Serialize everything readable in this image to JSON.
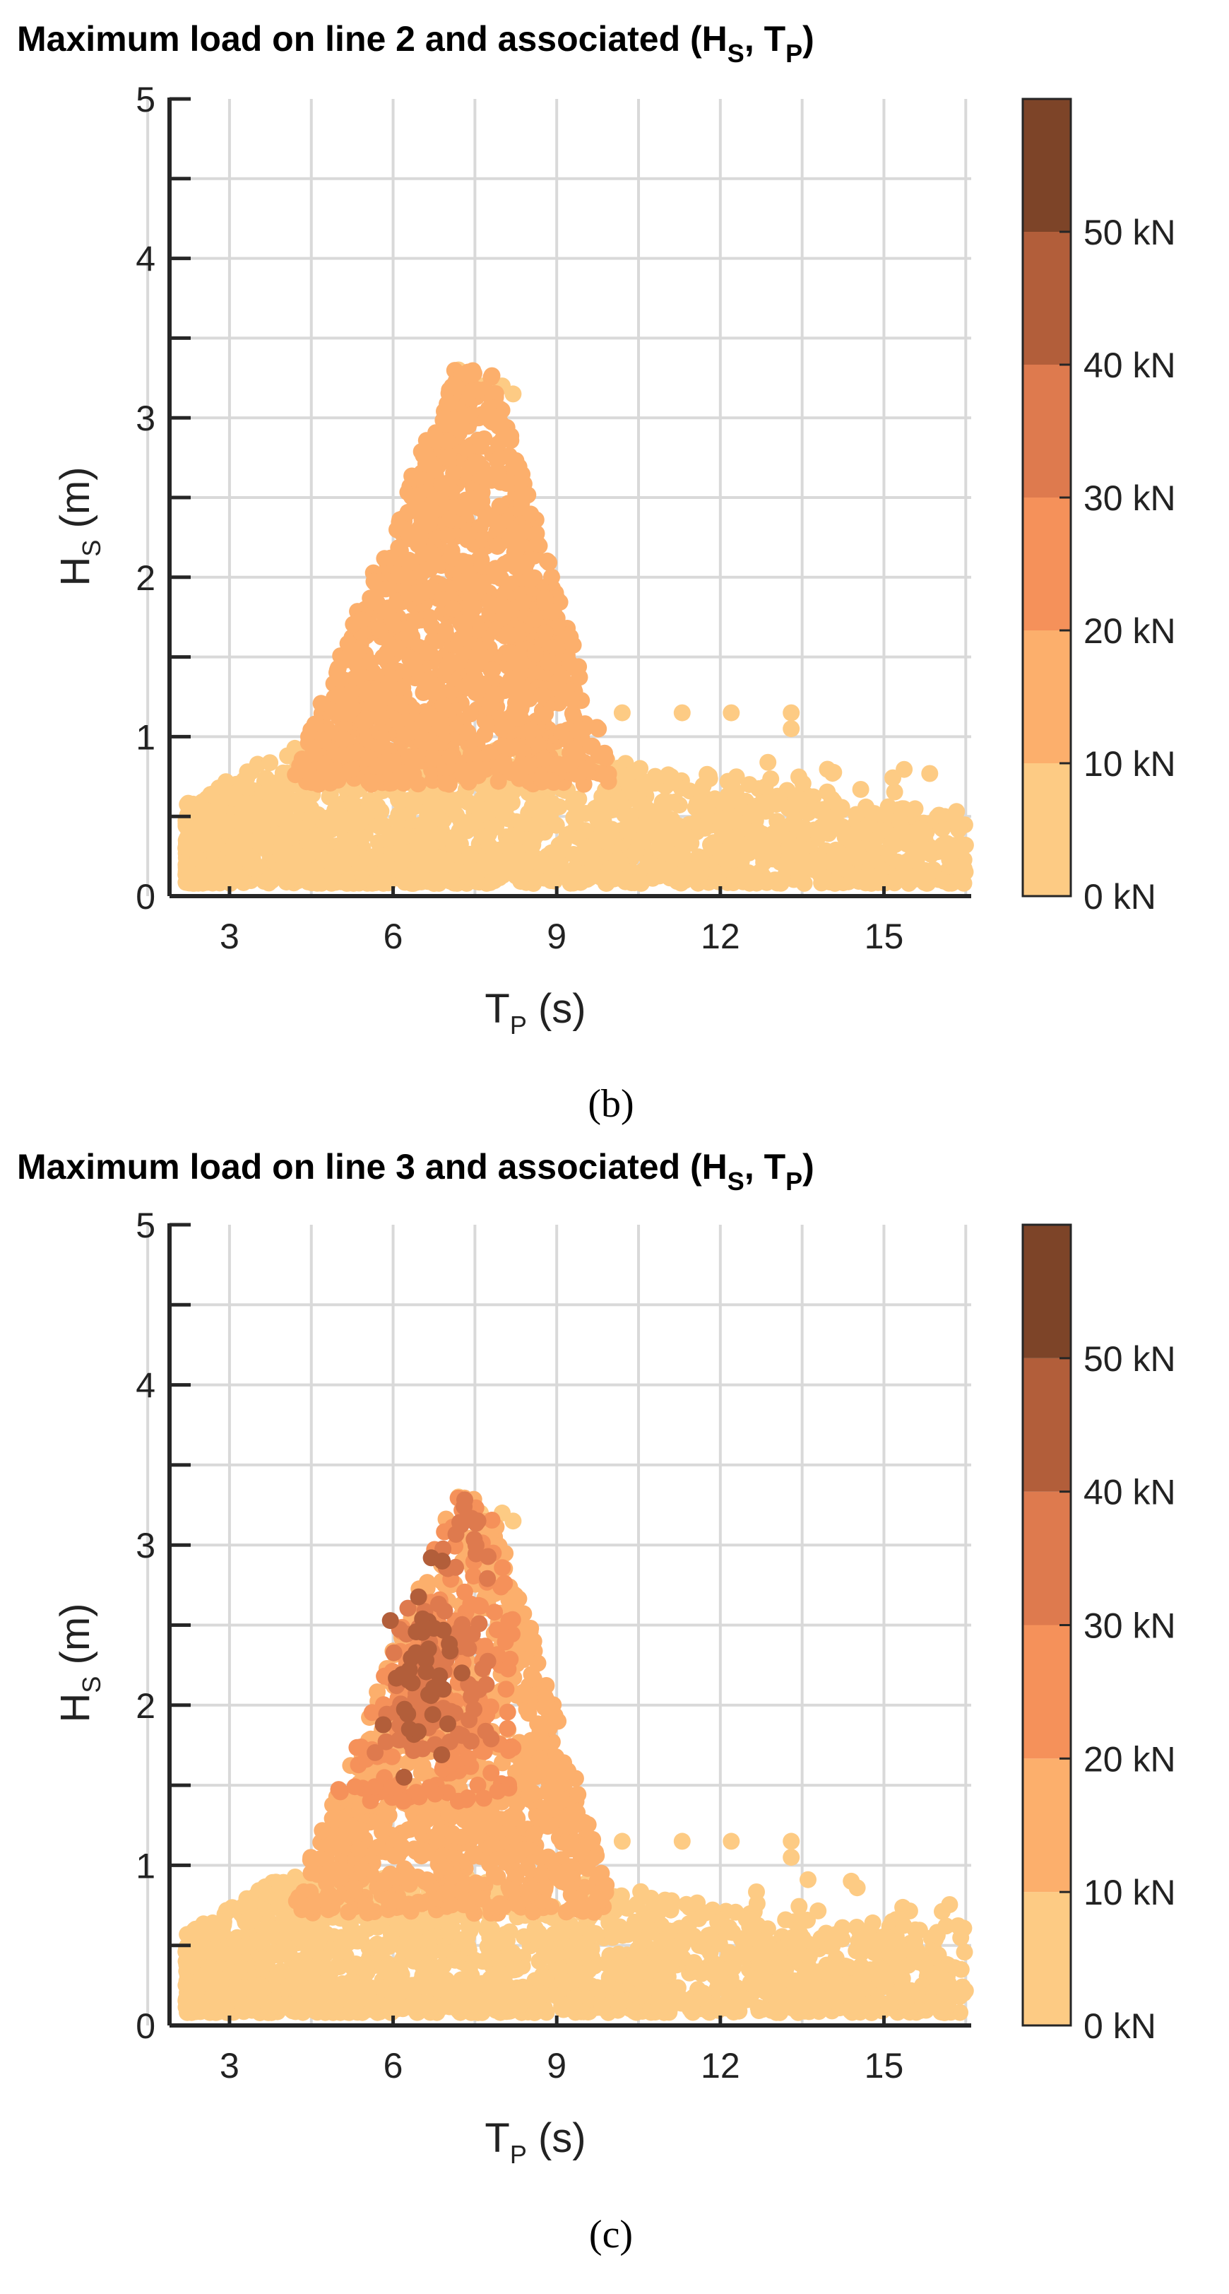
{
  "chart_data": [
    {
      "type": "scatter",
      "panel_label": "(b)",
      "title": {
        "main": "Maximum load on line 2 and associated (H",
        "sub1": "S",
        "sep": ", T",
        "sub2": "P",
        "close": ")"
      },
      "xlabel": {
        "main": "T",
        "sub": "P",
        "unit": " (s)"
      },
      "ylabel": {
        "main": "H",
        "sub": "S",
        "unit": " (m)"
      },
      "xlim": [
        1.9,
        16.6
      ],
      "ylim": [
        0,
        5
      ],
      "xticks": [
        3,
        6,
        9,
        12,
        15
      ],
      "yticks": [
        0,
        1,
        2,
        3,
        4,
        5
      ],
      "grid": true,
      "colorbar": {
        "label_unit": "kN",
        "levels": [
          0,
          10,
          20,
          30,
          40,
          50,
          60
        ],
        "tick_labels": [
          "0 kN",
          "10 kN",
          "20 kN",
          "30 kN",
          "40 kN",
          "50 kN"
        ],
        "colors": [
          "#FDCB84",
          "#FCAF6C",
          "#F5915A",
          "#DE7A4E",
          "#B25E3A",
          "#7D4428"
        ]
      },
      "clusters": [
        {
          "name": "low-load",
          "load_class": 0,
          "tp_center": 6.5,
          "hs_center": 0.35,
          "note": "dense band 0–0.9 m, T_P 2.2–16.5 s"
        },
        {
          "name": "mid-load",
          "load_class": 1,
          "tp_center": 6.6,
          "hs_center": 1.75,
          "note": "triangular cluster peaking near (7.3 s, 3.3 m)"
        }
      ],
      "outliers": [
        [
          7.2,
          3.3
        ],
        [
          7.6,
          3.2
        ],
        [
          8.0,
          3.2
        ],
        [
          8.2,
          3.15
        ],
        [
          10.2,
          1.15
        ],
        [
          11.3,
          1.15
        ],
        [
          12.2,
          1.15
        ],
        [
          13.3,
          1.15
        ],
        [
          13.3,
          1.05
        ]
      ]
    },
    {
      "type": "scatter",
      "panel_label": "(c)",
      "title": {
        "main": "Maximum load on line 3 and associated (H",
        "sub1": "S",
        "sep": ", T",
        "sub2": "P",
        "close": ")"
      },
      "xlabel": {
        "main": "T",
        "sub": "P",
        "unit": " (s)"
      },
      "ylabel": {
        "main": "H",
        "sub": "S",
        "unit": " (m)"
      },
      "xlim": [
        1.9,
        16.6
      ],
      "ylim": [
        0,
        5
      ],
      "xticks": [
        3,
        6,
        9,
        12,
        15
      ],
      "yticks": [
        0,
        1,
        2,
        3,
        4,
        5
      ],
      "grid": true,
      "colorbar": {
        "label_unit": "kN",
        "levels": [
          0,
          10,
          20,
          30,
          40,
          50,
          60
        ],
        "tick_labels": [
          "0 kN",
          "10 kN",
          "20 kN",
          "30 kN",
          "40 kN",
          "50 kN"
        ],
        "colors": [
          "#FDCB84",
          "#FCAF6C",
          "#F5915A",
          "#DE7A4E",
          "#B25E3A",
          "#7D4428"
        ]
      },
      "clusters": [
        {
          "name": "low-load",
          "load_class": 0,
          "tp_center": 6.5,
          "hs_center": 0.35
        },
        {
          "name": "mid-load",
          "load_class": 1,
          "tp_center": 6.3,
          "hs_center": 1.2
        },
        {
          "name": "higher-load",
          "load_class": 2,
          "tp_center": 6.6,
          "hs_center": 1.9
        },
        {
          "name": "high-load",
          "load_class": 3,
          "tp_center": 6.5,
          "hs_center": 2.1
        },
        {
          "name": "peak-load",
          "load_class": 4,
          "tp_center": 6.6,
          "hs_center": 2.45
        }
      ],
      "outliers": [
        [
          7.2,
          3.3
        ],
        [
          7.6,
          3.2
        ],
        [
          8.0,
          3.2
        ],
        [
          8.2,
          3.15
        ],
        [
          10.2,
          1.15
        ],
        [
          11.3,
          1.15
        ],
        [
          12.2,
          1.15
        ],
        [
          13.3,
          1.15
        ],
        [
          13.3,
          1.05
        ]
      ]
    }
  ]
}
